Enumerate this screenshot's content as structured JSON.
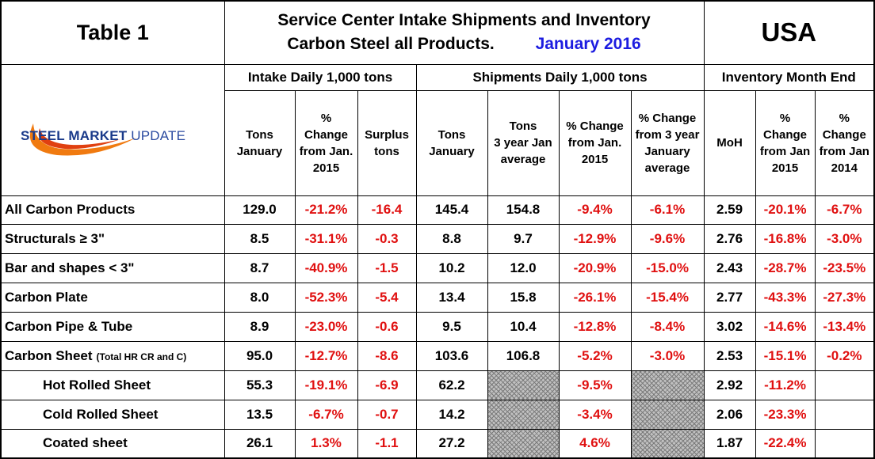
{
  "header": {
    "table_label": "Table 1",
    "title_line1": "Service Center Intake Shipments and Inventory",
    "title_line2": "Carbon Steel all Products.",
    "title_date": "January 2016",
    "region": "USA"
  },
  "logo": {
    "bold": "STEEL",
    "part2": "MARKET",
    "part3": "UPDATE"
  },
  "groups": {
    "intake": "Intake Daily 1,000 tons",
    "shipments": "Shipments Daily 1,000 tons",
    "inventory": "Inventory Month End"
  },
  "columns": {
    "intake_tons": [
      "Tons",
      "January"
    ],
    "intake_pct": [
      "%",
      "Change",
      "from Jan.",
      "2015"
    ],
    "intake_surplus": [
      "Surplus",
      "tons"
    ],
    "ship_tons": [
      "Tons",
      "January"
    ],
    "ship_3yr": [
      "Tons",
      "3 year Jan",
      "average"
    ],
    "ship_pct": [
      "% Change",
      "from Jan.",
      "2015"
    ],
    "ship_pct3yr": [
      "% Change",
      "from 3 year",
      "January",
      "average"
    ],
    "inv_moh": [
      "MoH"
    ],
    "inv_pct15": [
      "%",
      "Change",
      "from Jan",
      "2015"
    ],
    "inv_pct14": [
      "%",
      "Change",
      "from Jan",
      "2014"
    ]
  },
  "rows": [
    {
      "label": "All Carbon Products",
      "note": "",
      "sub": false,
      "values": [
        "129.0",
        "-21.2%",
        "-16.4",
        "145.4",
        "154.8",
        "-9.4%",
        "-6.1%",
        "2.59",
        "-20.1%",
        "-6.7%"
      ]
    },
    {
      "label": "Structurals ≥ 3\"",
      "note": "",
      "sub": false,
      "values": [
        "8.5",
        "-31.1%",
        "-0.3",
        "8.8",
        "9.7",
        "-12.9%",
        "-9.6%",
        "2.76",
        "-16.8%",
        "-3.0%"
      ]
    },
    {
      "label": "Bar and shapes < 3\"",
      "note": "",
      "sub": false,
      "values": [
        "8.7",
        "-40.9%",
        "-1.5",
        "10.2",
        "12.0",
        "-20.9%",
        "-15.0%",
        "2.43",
        "-28.7%",
        "-23.5%"
      ]
    },
    {
      "label": "Carbon Plate",
      "note": "",
      "sub": false,
      "values": [
        "8.0",
        "-52.3%",
        "-5.4",
        "13.4",
        "15.8",
        "-26.1%",
        "-15.4%",
        "2.77",
        "-43.3%",
        "-27.3%"
      ]
    },
    {
      "label": "Carbon Pipe & Tube",
      "note": "",
      "sub": false,
      "values": [
        "8.9",
        "-23.0%",
        "-0.6",
        "9.5",
        "10.4",
        "-12.8%",
        "-8.4%",
        "3.02",
        "-14.6%",
        "-13.4%"
      ]
    },
    {
      "label": "Carbon Sheet",
      "note": "(Total HR CR and C)",
      "sub": false,
      "values": [
        "95.0",
        "-12.7%",
        "-8.6",
        "103.6",
        "106.8",
        "-5.2%",
        "-3.0%",
        "2.53",
        "-15.1%",
        "-0.2%"
      ]
    },
    {
      "label": "Hot Rolled Sheet",
      "note": "",
      "sub": true,
      "values": [
        "55.3",
        "-19.1%",
        "-6.9",
        "62.2",
        "",
        "-9.5%",
        "",
        "2.92",
        "-11.2%",
        ""
      ]
    },
    {
      "label": "Cold Rolled Sheet",
      "note": "",
      "sub": true,
      "values": [
        "13.5",
        "-6.7%",
        "-0.7",
        "14.2",
        "",
        "-3.4%",
        "",
        "2.06",
        "-23.3%",
        ""
      ]
    },
    {
      "label": "Coated sheet",
      "note": "",
      "sub": true,
      "values": [
        "26.1",
        "1.3%",
        "-1.1",
        "27.2",
        "",
        "4.6%",
        "",
        "1.87",
        "-22.4%",
        ""
      ]
    }
  ],
  "colors": {
    "negative": "#e01010",
    "usa": "#3a5fe0",
    "date": "#1c1ce0",
    "logo": "#1a3a8a"
  }
}
